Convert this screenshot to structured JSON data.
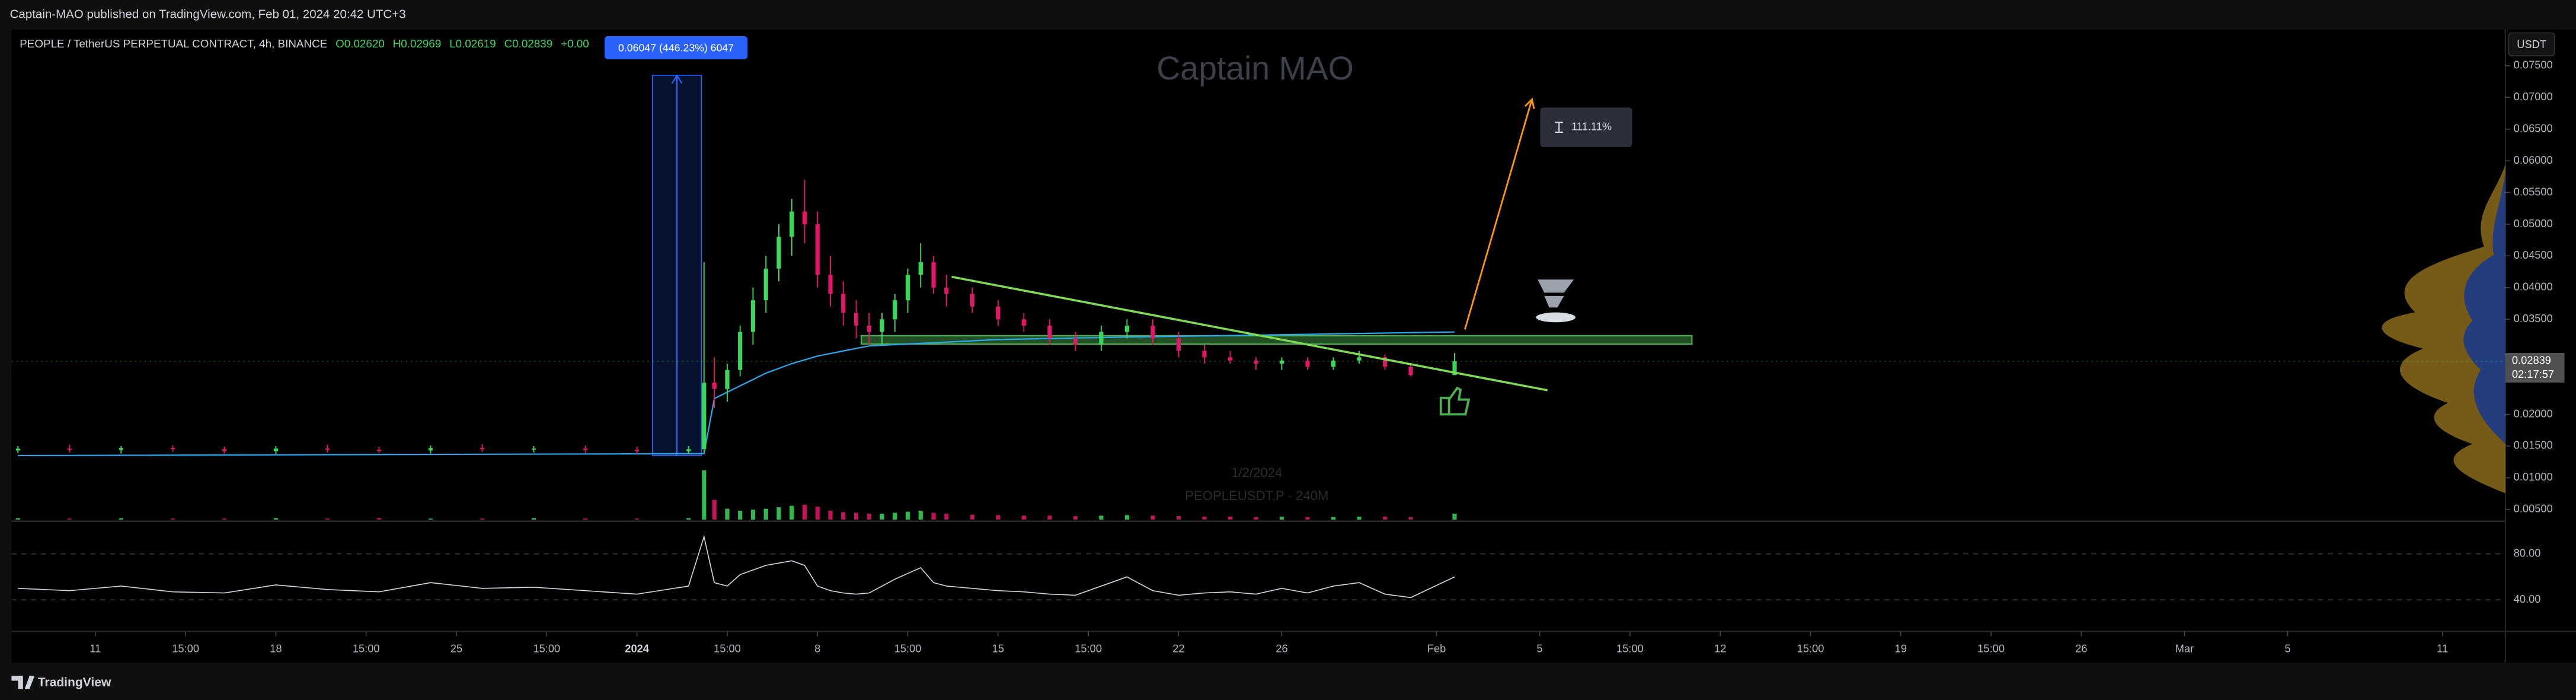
{
  "header": {
    "publisher": "Captain-MAO published on TradingView.com, Feb 01, 2024 20:42 UTC+3",
    "currency": "USDT"
  },
  "footer": {
    "brand": "TradingView"
  },
  "chart_data": {
    "type": "candlestick",
    "watermark": "Captain MAO",
    "symbol": "PEOPLE / TetherUS PERPETUAL CONTRACT, 4h, BINANCE",
    "ohlc": [
      "O0.02620",
      "H0.02969",
      "L0.02619",
      "C0.02839",
      "+0.00"
    ],
    "session_date": "1/2/2024",
    "session_symbol": "PEOPLEUSDT.P · 240M",
    "countdown": "02:17:57",
    "last_price_label": "0.02839",
    "up_color": "#3bd65c",
    "down_color": "#e2176a",
    "x": [
      7,
      9,
      11,
      13,
      15,
      17,
      19,
      21,
      23,
      25,
      27,
      29,
      31,
      33,
      33.6,
      34,
      34.5,
      35,
      35.5,
      36,
      36.5,
      37,
      37.5,
      38,
      38.5,
      39,
      39.5,
      40,
      40.5,
      41,
      41.5,
      42,
      42.5,
      43,
      44,
      45,
      46,
      47,
      48,
      49,
      50,
      51,
      52,
      53,
      54,
      55,
      56,
      57,
      58,
      59,
      60,
      61,
      62.7
    ],
    "open": [
      0.0143,
      0.0146,
      0.0144,
      0.0147,
      0.0145,
      0.0142,
      0.0146,
      0.0144,
      0.0143,
      0.0147,
      0.0145,
      0.0146,
      0.0144,
      0.0142,
      0.0145,
      0.025,
      0.024,
      0.027,
      0.033,
      0.038,
      0.043,
      0.048,
      0.052,
      0.05,
      0.042,
      0.039,
      0.036,
      0.034,
      0.033,
      0.035,
      0.038,
      0.042,
      0.044,
      0.04,
      0.039,
      0.037,
      0.035,
      0.034,
      0.032,
      0.031,
      0.033,
      0.034,
      0.032,
      0.03,
      0.029,
      0.0285,
      0.028,
      0.0285,
      0.0275,
      0.0285,
      0.029,
      0.0275,
      0.0262
    ],
    "high": [
      0.015,
      0.0152,
      0.015,
      0.0151,
      0.0149,
      0.015,
      0.0152,
      0.0149,
      0.0151,
      0.0153,
      0.015,
      0.0151,
      0.0149,
      0.015,
      0.044,
      0.029,
      0.028,
      0.034,
      0.04,
      0.045,
      0.05,
      0.054,
      0.057,
      0.052,
      0.045,
      0.041,
      0.038,
      0.036,
      0.036,
      0.039,
      0.043,
      0.047,
      0.045,
      0.042,
      0.04,
      0.038,
      0.036,
      0.035,
      0.033,
      0.034,
      0.035,
      0.035,
      0.033,
      0.031,
      0.03,
      0.029,
      0.029,
      0.029,
      0.029,
      0.03,
      0.0295,
      0.028,
      0.02969
    ],
    "low": [
      0.0139,
      0.014,
      0.0138,
      0.0141,
      0.0138,
      0.0137,
      0.014,
      0.0139,
      0.0138,
      0.0141,
      0.014,
      0.0139,
      0.0138,
      0.0137,
      0.014,
      0.021,
      0.022,
      0.026,
      0.031,
      0.036,
      0.041,
      0.045,
      0.047,
      0.04,
      0.037,
      0.034,
      0.032,
      0.031,
      0.031,
      0.033,
      0.036,
      0.04,
      0.039,
      0.037,
      0.036,
      0.034,
      0.033,
      0.031,
      0.03,
      0.03,
      0.032,
      0.031,
      0.029,
      0.028,
      0.028,
      0.027,
      0.027,
      0.027,
      0.027,
      0.028,
      0.027,
      0.026,
      0.02619
    ],
    "close": [
      0.0146,
      0.0144,
      0.0147,
      0.0145,
      0.0142,
      0.0146,
      0.0144,
      0.0143,
      0.0147,
      0.0145,
      0.0146,
      0.0144,
      0.0142,
      0.0145,
      0.025,
      0.024,
      0.027,
      0.033,
      0.038,
      0.043,
      0.048,
      0.052,
      0.05,
      0.042,
      0.039,
      0.036,
      0.034,
      0.033,
      0.035,
      0.038,
      0.042,
      0.044,
      0.04,
      0.039,
      0.037,
      0.035,
      0.034,
      0.032,
      0.031,
      0.033,
      0.034,
      0.032,
      0.03,
      0.029,
      0.0285,
      0.028,
      0.0285,
      0.0275,
      0.0285,
      0.029,
      0.0275,
      0.0262,
      0.02839
    ],
    "volume": [
      3,
      2,
      3,
      2,
      2,
      3,
      2,
      3,
      2,
      2,
      3,
      2,
      2,
      3,
      100,
      40,
      22,
      18,
      20,
      22,
      25,
      28,
      30,
      26,
      18,
      15,
      14,
      12,
      12,
      14,
      16,
      18,
      14,
      12,
      10,
      9,
      8,
      8,
      7,
      8,
      9,
      8,
      7,
      6,
      6,
      5,
      6,
      5,
      5,
      6,
      6,
      5,
      12
    ],
    "rsi": [
      50,
      48,
      52,
      47,
      46,
      53,
      49,
      47,
      55,
      50,
      51,
      48,
      45,
      52,
      95,
      55,
      52,
      62,
      66,
      70,
      72,
      74,
      70,
      52,
      48,
      46,
      45,
      46,
      52,
      58,
      63,
      68,
      55,
      52,
      50,
      48,
      47,
      45,
      44,
      52,
      60,
      48,
      44,
      46,
      47,
      45,
      50,
      46,
      52,
      55,
      45,
      42,
      60
    ],
    "rsi_color": "#d1d4dc",
    "ma": {
      "color": "#29a8f0",
      "x": [
        7,
        33.6,
        34,
        35,
        36,
        37,
        38,
        39,
        40,
        45,
        50,
        55,
        62.7
      ],
      "values": [
        0.0135,
        0.0138,
        0.0225,
        0.0245,
        0.0265,
        0.028,
        0.0292,
        0.03,
        0.0308,
        0.0318,
        0.0322,
        0.0325,
        0.033
      ]
    },
    "measure": {
      "color": "#2962ff",
      "x": [
        31.6,
        33.5
      ],
      "y": [
        0.0135,
        0.0735
      ],
      "label": "0.06047 (446.23%) 6047"
    },
    "zone": {
      "color": "#4caf50",
      "x": [
        39.7,
        71.9
      ],
      "y": [
        0.0311,
        0.0324
      ]
    },
    "trendline": {
      "color": "#7ed957",
      "x": [
        43.2,
        66.3
      ],
      "y": [
        0.0417,
        0.0238
      ]
    },
    "target": {
      "color": "#ff9800",
      "x": [
        63.1,
        65.7
      ],
      "y": [
        0.0334,
        0.0697
      ],
      "label": "111.11%"
    },
    "xlim": [
      6.75,
      103.44
    ],
    "xticks": [
      {
        "value": 10,
        "label": "11"
      },
      {
        "value": 13.5,
        "label": "15:00"
      },
      {
        "value": 17,
        "label": "18"
      },
      {
        "value": 20.5,
        "label": "15:00"
      },
      {
        "value": 24,
        "label": "25"
      },
      {
        "value": 27.5,
        "label": "15:00"
      },
      {
        "value": 31,
        "label": "2024"
      },
      {
        "value": 34.5,
        "label": "15:00"
      },
      {
        "value": 38,
        "label": "8"
      },
      {
        "value": 41.5,
        "label": "15:00"
      },
      {
        "value": 45,
        "label": "15"
      },
      {
        "value": 48.5,
        "label": "15:00"
      },
      {
        "value": 52,
        "label": "22"
      },
      {
        "value": 56,
        "label": "26"
      },
      {
        "value": 62,
        "label": "Feb"
      },
      {
        "value": 66,
        "label": "5"
      },
      {
        "value": 69.5,
        "label": "15:00"
      },
      {
        "value": 73,
        "label": "12"
      },
      {
        "value": 76.5,
        "label": "15:00"
      },
      {
        "value": 80,
        "label": "19"
      },
      {
        "value": 83.5,
        "label": "15:00"
      },
      {
        "value": 87,
        "label": "26"
      },
      {
        "value": 91,
        "label": "Mar"
      },
      {
        "value": 95,
        "label": "5"
      },
      {
        "value": 101,
        "label": "11"
      }
    ],
    "ylim": [
      0.0034,
      0.0807
    ],
    "yticks": [
      {
        "value": 0.075,
        "label": "0.07500"
      },
      {
        "value": 0.07,
        "label": "0.07000"
      },
      {
        "value": 0.065,
        "label": "0.06500"
      },
      {
        "value": 0.06,
        "label": "0.06000"
      },
      {
        "value": 0.055,
        "label": "0.05500"
      },
      {
        "value": 0.05,
        "label": "0.05000"
      },
      {
        "value": 0.045,
        "label": "0.04500"
      },
      {
        "value": 0.04,
        "label": "0.04000"
      },
      {
        "value": 0.035,
        "label": "0.03500"
      },
      {
        "value": 0.02,
        "label": "0.02000"
      },
      {
        "value": 0.015,
        "label": "0.01500"
      },
      {
        "value": 0.01,
        "label": "0.01000"
      },
      {
        "value": 0.005,
        "label": "0.00500"
      }
    ],
    "rsi_ylim": [
      14,
      107
    ],
    "rsi_ticks": [
      {
        "value": 80,
        "label": "80.00"
      },
      {
        "value": 40,
        "label": "40.00"
      }
    ]
  }
}
